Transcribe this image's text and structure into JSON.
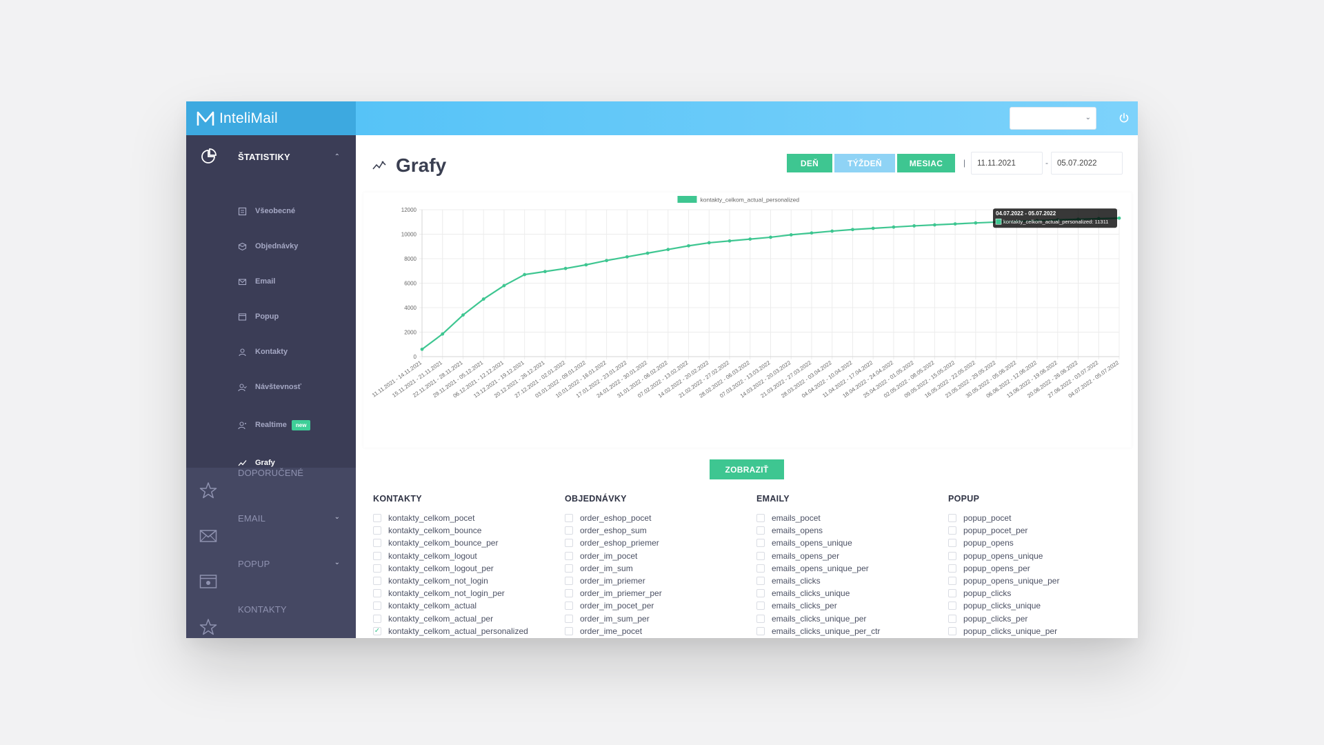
{
  "app": {
    "brand": "InteliMail"
  },
  "sidebar": {
    "sections": [
      {
        "label": "ŠTATISTIKY",
        "expanded": true,
        "items": [
          {
            "label": "Všeobecné",
            "icon": "document-icon"
          },
          {
            "label": "Objednávky",
            "icon": "box-icon"
          },
          {
            "label": "Email",
            "icon": "envelope-icon"
          },
          {
            "label": "Popup",
            "icon": "window-icon"
          },
          {
            "label": "Kontakty",
            "icon": "user-icon"
          },
          {
            "label": "Návštevnosť",
            "icon": "user-visit-icon"
          },
          {
            "label": "Realtime",
            "icon": "realtime-icon",
            "badge": "new"
          },
          {
            "label": "Grafy",
            "icon": "line-chart-icon",
            "active": true
          }
        ]
      },
      {
        "label": "DOPORUČENÉ",
        "icon": "star-icon"
      },
      {
        "label": "EMAIL",
        "icon": "envelope-icon"
      },
      {
        "label": "POPUP",
        "icon": "popup-icon"
      },
      {
        "label": "KONTAKTY",
        "icon": "star-icon"
      }
    ]
  },
  "header": {
    "select_value": "",
    "power_icon": "power-icon"
  },
  "page": {
    "title": "Grafy",
    "buttons": {
      "day": "DEŇ",
      "week": "TÝŽDEŇ",
      "month": "MESIAC"
    },
    "separator": "|",
    "date_from": "11.11.2021",
    "date_dash": "-",
    "date_to": "05.07.2022",
    "show_button": "ZOBRAZIŤ"
  },
  "chart_data": {
    "type": "line",
    "legend": "kontakty_celkom_actual_personalized",
    "legend_position": "top-center",
    "grid": true,
    "ylim": [
      0,
      12000
    ],
    "yticks": [
      0,
      2000,
      4000,
      6000,
      8000,
      10000,
      12000
    ],
    "categories": [
      "11.11.2021 - 14.11.2021",
      "15.11.2021 - 21.11.2021",
      "22.11.2021 - 28.11.2021",
      "29.11.2021 - 05.12.2021",
      "06.12.2021 - 12.12.2021",
      "13.12.2021 - 19.12.2021",
      "20.12.2021 - 26.12.2021",
      "27.12.2021 - 02.01.2022",
      "03.01.2022 - 09.01.2022",
      "10.01.2022 - 16.01.2022",
      "17.01.2022 - 23.01.2022",
      "24.01.2022 - 30.01.2022",
      "31.01.2022 - 06.02.2022",
      "07.02.2022 - 13.02.2022",
      "14.02.2022 - 20.02.2022",
      "21.02.2022 - 27.02.2022",
      "28.02.2022 - 06.03.2022",
      "07.03.2022 - 13.03.2022",
      "14.03.2022 - 20.03.2022",
      "21.03.2022 - 27.03.2022",
      "28.03.2022 - 03.04.2022",
      "04.04.2022 - 10.04.2022",
      "11.04.2022 - 17.04.2022",
      "18.04.2022 - 24.04.2022",
      "25.04.2022 - 01.05.2022",
      "02.05.2022 - 08.05.2022",
      "09.05.2022 - 15.05.2022",
      "16.05.2022 - 22.05.2022",
      "23.05.2022 - 29.05.2022",
      "30.05.2022 - 05.06.2022",
      "06.06.2022 - 12.06.2022",
      "13.06.2022 - 19.06.2022",
      "20.06.2022 - 26.06.2022",
      "27.06.2022 - 03.07.2022",
      "04.07.2022 - 05.07.2022"
    ],
    "series": [
      {
        "name": "kontakty_celkom_actual_personalized",
        "color": "#3ec691",
        "values": [
          600,
          1850,
          3400,
          4700,
          5800,
          6700,
          6950,
          7200,
          7500,
          7850,
          8150,
          8450,
          8750,
          9050,
          9300,
          9450,
          9600,
          9750,
          9950,
          10100,
          10250,
          10380,
          10480,
          10580,
          10680,
          10760,
          10840,
          10920,
          10990,
          11050,
          11110,
          11170,
          11220,
          11270,
          11311
        ]
      }
    ],
    "tooltip": {
      "title": "04.07.2022 - 05.07.2022",
      "label": "kontakty_celkom_actual_personalized: 11311"
    }
  },
  "checkbox_groups": [
    {
      "title": "KONTAKTY",
      "items": [
        {
          "label": "kontakty_celkom_pocet",
          "checked": false
        },
        {
          "label": "kontakty_celkom_bounce",
          "checked": false
        },
        {
          "label": "kontakty_celkom_bounce_per",
          "checked": false
        },
        {
          "label": "kontakty_celkom_logout",
          "checked": false
        },
        {
          "label": "kontakty_celkom_logout_per",
          "checked": false
        },
        {
          "label": "kontakty_celkom_not_login",
          "checked": false
        },
        {
          "label": "kontakty_celkom_not_login_per",
          "checked": false
        },
        {
          "label": "kontakty_celkom_actual",
          "checked": false
        },
        {
          "label": "kontakty_celkom_actual_per",
          "checked": false
        },
        {
          "label": "kontakty_celkom_actual_personalized",
          "checked": true
        }
      ]
    },
    {
      "title": "OBJEDNÁVKY",
      "items": [
        {
          "label": "order_eshop_pocet",
          "checked": false
        },
        {
          "label": "order_eshop_sum",
          "checked": false
        },
        {
          "label": "order_eshop_priemer",
          "checked": false
        },
        {
          "label": "order_im_pocet",
          "checked": false
        },
        {
          "label": "order_im_sum",
          "checked": false
        },
        {
          "label": "order_im_priemer",
          "checked": false
        },
        {
          "label": "order_im_priemer_per",
          "checked": false
        },
        {
          "label": "order_im_pocet_per",
          "checked": false
        },
        {
          "label": "order_im_sum_per",
          "checked": false
        },
        {
          "label": "order_ime_pocet",
          "checked": false
        }
      ]
    },
    {
      "title": "EMAILY",
      "items": [
        {
          "label": "emails_pocet",
          "checked": false
        },
        {
          "label": "emails_opens",
          "checked": false
        },
        {
          "label": "emails_opens_unique",
          "checked": false
        },
        {
          "label": "emails_opens_per",
          "checked": false
        },
        {
          "label": "emails_opens_unique_per",
          "checked": false
        },
        {
          "label": "emails_clicks",
          "checked": false
        },
        {
          "label": "emails_clicks_unique",
          "checked": false
        },
        {
          "label": "emails_clicks_per",
          "checked": false
        },
        {
          "label": "emails_clicks_unique_per",
          "checked": false
        },
        {
          "label": "emails_clicks_unique_per_ctr",
          "checked": false
        }
      ]
    },
    {
      "title": "POPUP",
      "items": [
        {
          "label": "popup_pocet",
          "checked": false
        },
        {
          "label": "popup_pocet_per",
          "checked": false
        },
        {
          "label": "popup_opens",
          "checked": false
        },
        {
          "label": "popup_opens_unique",
          "checked": false
        },
        {
          "label": "popup_opens_per",
          "checked": false
        },
        {
          "label": "popup_opens_unique_per",
          "checked": false
        },
        {
          "label": "popup_clicks",
          "checked": false
        },
        {
          "label": "popup_clicks_unique",
          "checked": false
        },
        {
          "label": "popup_clicks_per",
          "checked": false
        },
        {
          "label": "popup_clicks_unique_per",
          "checked": false
        }
      ]
    }
  ]
}
